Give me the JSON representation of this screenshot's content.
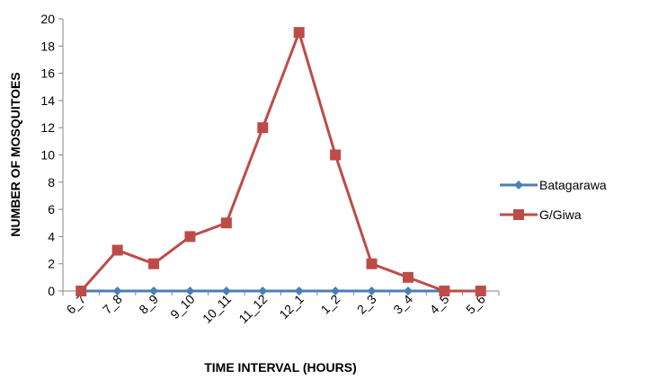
{
  "chart_data": {
    "type": "line",
    "title": "",
    "xlabel": "TIME INTERVAL (HOURS)",
    "ylabel": "NUMBER OF MOSQUITOES",
    "categories": [
      "6_7",
      "7_8",
      "8_9",
      "9_10",
      "10_11",
      "11_12",
      "12_1",
      "1_2",
      "2_3",
      "3_4",
      "4_5",
      "5_6"
    ],
    "ylim": [
      0,
      20
    ],
    "yticks": [
      0,
      2,
      4,
      6,
      8,
      10,
      12,
      14,
      16,
      18,
      20
    ],
    "grid": false,
    "legend_position": "right",
    "series": [
      {
        "name": "Batagarawa",
        "color": "#4A7EBB",
        "marker": "diamond",
        "values": [
          0,
          0,
          0,
          0,
          0,
          0,
          0,
          0,
          0,
          0,
          0,
          0
        ]
      },
      {
        "name": "G/Giwa",
        "color": "#BE4B48",
        "marker": "square",
        "values": [
          0,
          3,
          2,
          4,
          5,
          12,
          19,
          10,
          2,
          1,
          0,
          0
        ]
      }
    ]
  }
}
